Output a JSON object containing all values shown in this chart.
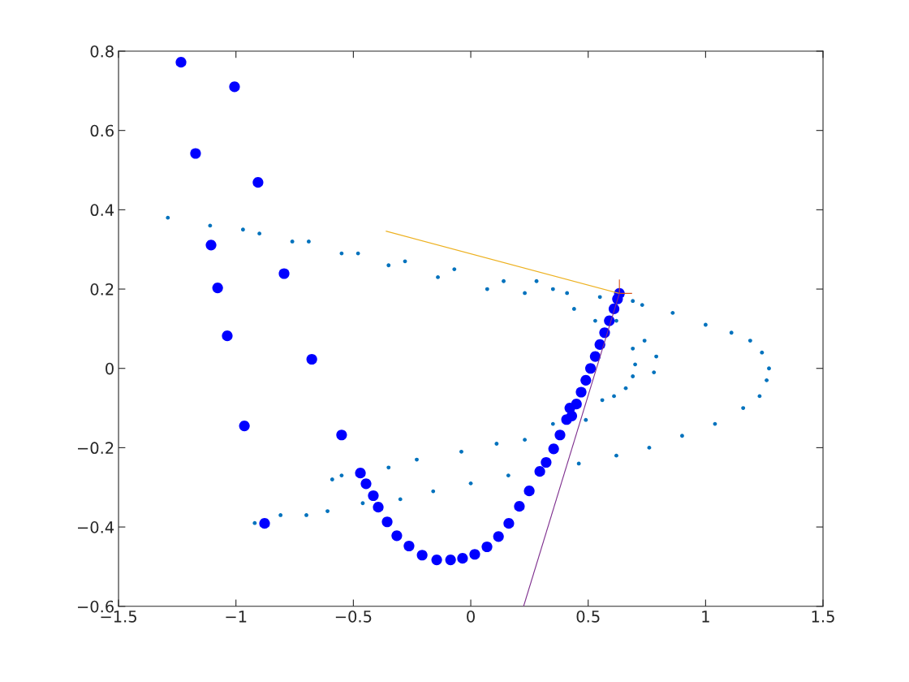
{
  "chart_data": {
    "type": "scatter",
    "xlim": [
      -1.5,
      1.5
    ],
    "ylim": [
      -0.6,
      0.8
    ],
    "xticks": [
      {
        "value": -1.5,
        "label": "−1.5"
      },
      {
        "value": -1,
        "label": "−1"
      },
      {
        "value": -0.5,
        "label": "−0.5"
      },
      0,
      0.5,
      1,
      1.5
    ],
    "yticks": [
      {
        "value": -0.6,
        "label": "−0.6"
      },
      {
        "value": -0.4,
        "label": "−0.4"
      },
      {
        "value": -0.2,
        "label": "−0.2"
      },
      0,
      0.2,
      0.4,
      0.6,
      0.8
    ],
    "grid": false,
    "legend": false,
    "marker": "circle",
    "series": [
      {
        "color": "#0072bd",
        "x": [
          -1.29,
          -1.11,
          -0.9,
          -0.69,
          -0.48,
          -0.28,
          -0.07,
          0.14,
          0.35,
          0.55,
          0.73,
          0.86,
          1.0,
          1.11,
          1.19,
          1.24,
          1.27,
          1.26,
          1.23,
          1.16,
          1.04,
          0.9,
          0.76,
          0.62,
          0.46,
          0.16,
          0.0,
          -0.16,
          -0.3,
          -0.46,
          -0.61,
          -0.7,
          -0.81,
          -0.92,
          -0.97,
          -0.76,
          -0.55,
          -0.35,
          -0.14,
          0.07,
          0.23,
          0.44,
          0.53,
          0.62,
          0.74,
          0.79,
          0.78,
          0.69,
          0.7,
          0.69,
          0.66,
          0.61,
          0.56,
          0.49,
          0.35,
          0.23,
          0.11,
          -0.04,
          -0.23,
          -0.35,
          -0.55,
          -0.59,
          0.28,
          0.41,
          0.69
        ],
        "values": [
          0.38,
          0.36,
          0.34,
          0.32,
          0.29,
          0.27,
          0.25,
          0.22,
          0.2,
          0.18,
          0.16,
          0.14,
          0.11,
          0.09,
          0.07,
          0.04,
          0.0,
          -0.03,
          -0.07,
          -0.1,
          -0.14,
          -0.17,
          -0.2,
          -0.22,
          -0.24,
          -0.27,
          -0.29,
          -0.31,
          -0.33,
          -0.34,
          -0.36,
          -0.37,
          -0.37,
          -0.39,
          0.35,
          0.32,
          0.29,
          0.26,
          0.23,
          0.2,
          0.19,
          0.15,
          0.12,
          0.12,
          0.07,
          0.03,
          -0.01,
          0.05,
          0.01,
          -0.02,
          -0.05,
          -0.07,
          -0.08,
          -0.13,
          -0.14,
          -0.18,
          -0.19,
          -0.21,
          -0.23,
          -0.25,
          -0.27,
          -0.28,
          0.22,
          0.19,
          0.17
        ]
      },
      {
        "color": "#0000ff",
        "x": [
          -1.234,
          -1.006,
          -1.172,
          -0.906,
          -1.106,
          -0.795,
          -1.078,
          -1.037,
          -0.677,
          -0.964,
          -0.55,
          -0.878,
          -0.47,
          -0.446,
          -0.415,
          -0.394,
          -0.356,
          -0.315,
          -0.263,
          -0.207,
          -0.145,
          -0.086,
          -0.035,
          0.017,
          0.069,
          0.118,
          0.162,
          0.207,
          0.249,
          0.294,
          0.321,
          0.353,
          0.38,
          0.408,
          0.422,
          0.43,
          0.45,
          0.47,
          0.49,
          0.51,
          0.53,
          0.55,
          0.57,
          0.59,
          0.61,
          0.625,
          0.633
        ],
        "values": [
          0.772,
          0.71,
          0.542,
          0.469,
          0.311,
          0.239,
          0.203,
          0.082,
          0.023,
          -0.145,
          -0.168,
          -0.391,
          -0.264,
          -0.291,
          -0.321,
          -0.35,
          -0.387,
          -0.422,
          -0.448,
          -0.471,
          -0.483,
          -0.483,
          -0.479,
          -0.469,
          -0.45,
          -0.424,
          -0.391,
          -0.348,
          -0.309,
          -0.26,
          -0.237,
          -0.203,
          -0.168,
          -0.129,
          -0.1,
          -0.12,
          -0.09,
          -0.06,
          -0.03,
          0.0,
          0.03,
          0.06,
          0.09,
          0.12,
          0.15,
          0.175,
          0.189
        ]
      },
      {
        "type": "line",
        "marker": "none",
        "color": "#edb120",
        "x": [
          0.633,
          -0.36
        ],
        "values": [
          0.189,
          0.346
        ]
      },
      {
        "type": "line",
        "marker": "none",
        "color": "#d95319",
        "x": [
          0.633,
          0.633
        ],
        "values": [
          0.189,
          0.223
        ]
      },
      {
        "type": "line",
        "marker": "none",
        "color": "#d95319",
        "x": [
          0.633,
          0.685
        ],
        "values": [
          0.189,
          0.189
        ]
      },
      {
        "type": "line",
        "marker": "none",
        "color": "#7e2f8e",
        "x": [
          0.225,
          0.633
        ],
        "values": [
          -0.6,
          0.189
        ]
      }
    ]
  }
}
